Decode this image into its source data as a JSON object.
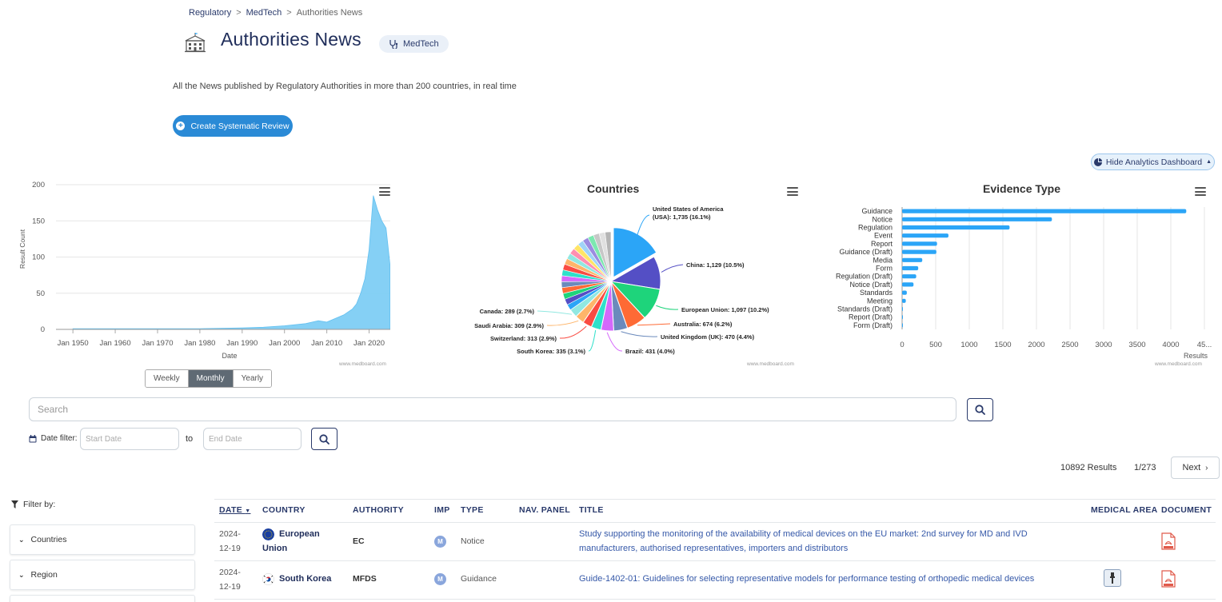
{
  "breadcrumb": {
    "items": [
      "Regulatory",
      "MedTech"
    ],
    "separator": ">",
    "current": "Authorities News"
  },
  "page": {
    "title": "Authorities News",
    "tag": "MedTech",
    "subtitle": "All the News published by Regulatory Authorities in more than 200 countries, in real time",
    "create_button": "Create Systematic Review",
    "hide_analytics": "Hide Analytics Dashboard"
  },
  "timeline": {
    "ylabel": "Result Count",
    "xlabel": "Date",
    "credit": "www.medboard.com",
    "yticks": [
      "0",
      "50",
      "100",
      "150",
      "200"
    ],
    "xticks": [
      "Jan 1950",
      "Jan 1960",
      "Jan 1970",
      "Jan 1980",
      "Jan 1990",
      "Jan 2000",
      "Jan 2010",
      "Jan 2020"
    ],
    "ranges": [
      "Weekly",
      "Monthly",
      "Yearly"
    ],
    "active_range": "Monthly",
    "color": "#7fcef5"
  },
  "countries": {
    "title": "Countries",
    "credit": "www.medboard.com"
  },
  "evidence": {
    "title": "Evidence Type",
    "xlabel": "Results",
    "credit": "www.medboard.com",
    "color": "#2ba5f7"
  },
  "chart_data": [
    {
      "type": "area",
      "title": "",
      "xlabel": "Date",
      "ylabel": "Result Count",
      "ylim": [
        0,
        200
      ],
      "xlim": [
        "1946-01",
        "2025-01"
      ],
      "grid": true,
      "x": [
        "1950-01",
        "1960-01",
        "1970-01",
        "1980-01",
        "1990-01",
        "1995-01",
        "2000-01",
        "2005-01",
        "2008-01",
        "2010-01",
        "2012-01",
        "2014-01",
        "2016-01",
        "2017-01",
        "2018-01",
        "2019-01",
        "2020-01",
        "2021-01",
        "2022-01",
        "2023-01",
        "2024-01",
        "2024-12"
      ],
      "y": [
        1,
        1,
        1,
        1,
        2,
        3,
        5,
        8,
        12,
        10,
        15,
        20,
        28,
        35,
        50,
        70,
        110,
        185,
        165,
        150,
        140,
        90
      ]
    },
    {
      "type": "pie",
      "title": "Countries",
      "labels": [
        "United States of America (USA): 1,735 (16.1%)",
        "China: 1,129 (10.5%)",
        "European Union: 1,097 (10.2%)",
        "Australia: 674 (6.2%)",
        "United Kingdom (UK): 470 (4.4%)",
        "Brazil: 431 (4.0%)",
        "South Korea: 335 (3.1%)",
        "Switzerland: 313 (2.9%)",
        "Saudi Arabia: 309 (2.9%)",
        "Canada: 289 (2.7%)"
      ],
      "slices": [
        {
          "name": "United States of America (USA)",
          "value": 1735,
          "pct": 16.1,
          "color": "#2ba5f7"
        },
        {
          "name": "China",
          "value": 1129,
          "pct": 10.5,
          "color": "#544fc5"
        },
        {
          "name": "European Union",
          "value": 1097,
          "pct": 10.2,
          "color": "#1ed47b"
        },
        {
          "name": "Australia",
          "value": 674,
          "pct": 6.2,
          "color": "#fe6a35"
        },
        {
          "name": "United Kingdom (UK)",
          "value": 470,
          "pct": 4.4,
          "color": "#6b8abc"
        },
        {
          "name": "Brazil",
          "value": 431,
          "pct": 4.0,
          "color": "#d568fb"
        },
        {
          "name": "South Korea",
          "value": 335,
          "pct": 3.1,
          "color": "#2ee0ca"
        },
        {
          "name": "Switzerland",
          "value": 313,
          "pct": 2.9,
          "color": "#fa4b42"
        },
        {
          "name": "Saudi Arabia",
          "value": 309,
          "pct": 2.9,
          "color": "#feb56a"
        },
        {
          "name": "Canada",
          "value": 289,
          "pct": 2.7,
          "color": "#91e8e1"
        },
        {
          "name": "",
          "value": 3610,
          "pct": 33.5,
          "color": "#cccccc"
        }
      ],
      "other_colors": [
        "#2ba5f7",
        "#544fc5",
        "#1ed47b",
        "#fe6a35",
        "#6b8abc",
        "#d568fb",
        "#2ee0ca",
        "#fa4b42",
        "#feb56a",
        "#91e8e1",
        "#ff8fb0",
        "#ffe566",
        "#a0d3f7",
        "#9b8ce0",
        "#7ce8b0",
        "#c7c7c7",
        "#e0e0e0",
        "#b5b5b5"
      ]
    },
    {
      "type": "bar",
      "orientation": "horizontal",
      "title": "Evidence Type",
      "xlabel": "Results",
      "xlim": [
        0,
        4500
      ],
      "xticks": [
        "0",
        "500",
        "1000",
        "1500",
        "2000",
        "2500",
        "3000",
        "3500",
        "4000",
        "45..."
      ],
      "grid": true,
      "categories": [
        "Guidance",
        "Notice",
        "Regulation",
        "Event",
        "Report",
        "Guidance (Draft)",
        "Media",
        "Form",
        "Regulation (Draft)",
        "Notice (Draft)",
        "Standards",
        "Meeting",
        "Standards (Draft)",
        "Report (Draft)",
        "Form (Draft)"
      ],
      "values": [
        4230,
        2230,
        1600,
        690,
        520,
        510,
        300,
        240,
        210,
        170,
        70,
        55,
        8,
        5,
        3
      ]
    }
  ],
  "search": {
    "placeholder": "Search"
  },
  "date_filter": {
    "label": "Date filter:",
    "start_placeholder": "Start Date",
    "to": "to",
    "end_placeholder": "End Date"
  },
  "pagination": {
    "results": "10892 Results",
    "page": "1/273",
    "next": "Next"
  },
  "filters": {
    "label": "Filter by:",
    "panels": [
      "Countries",
      "Region"
    ]
  },
  "table": {
    "headers": {
      "date": "DATE",
      "country": "COUNTRY",
      "authority": "AUTHORITY",
      "imp": "IMP",
      "type": "TYPE",
      "nav": "NAV. PANEL",
      "title": "TITLE",
      "medical_area": "MEDICAL AREA",
      "document": "DOCUMENT"
    },
    "rows": [
      {
        "date1": "2024-",
        "date2": "12-19",
        "country1": "European",
        "country2": "Union",
        "authority": "EC",
        "imp": "M",
        "type": "Notice",
        "title1": "Study supporting the monitoring of the availability of medical devices on the EU market: 2nd survey for MD and IVD",
        "title2": "manufacturers, authorised representatives, importers and distributors"
      },
      {
        "date1": "2024-",
        "date2": "12-19",
        "country1": "South Korea",
        "country2": "",
        "authority": "MFDS",
        "imp": "M",
        "type": "Guidance",
        "title1": "Guide-1402-01: Guidelines for selecting representative models for performance testing of orthopedic medical devices",
        "title2": ""
      }
    ]
  }
}
